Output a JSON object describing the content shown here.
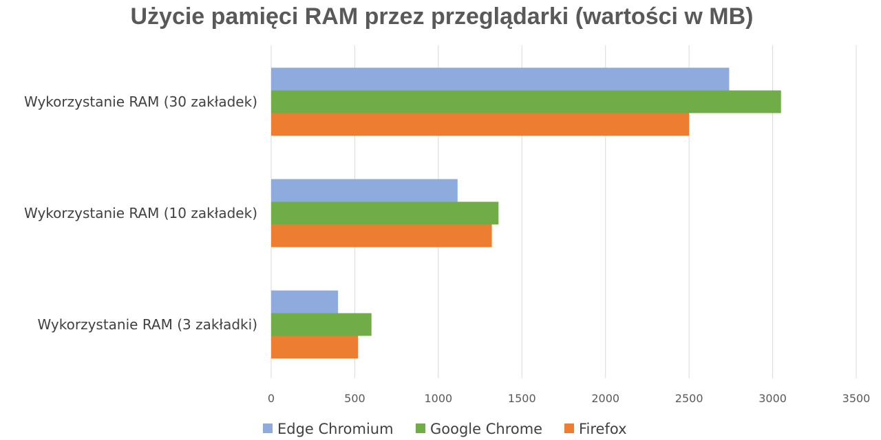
{
  "chart_data": {
    "type": "bar",
    "orientation": "horizontal",
    "title": "Użycie pamięci RAM przez przeglądarki (wartości w MB)",
    "xlabel": "",
    "ylabel": "",
    "xlim": [
      0,
      3500
    ],
    "x_ticks": [
      0,
      500,
      1000,
      1500,
      2000,
      2500,
      3000,
      3500
    ],
    "grid": true,
    "legend_position": "bottom",
    "categories": [
      "Wykorzystanie RAM (30 zakładek)",
      "Wykorzystanie RAM (10 zakładek)",
      "Wykorzystanie RAM (3 zakładki)"
    ],
    "series": [
      {
        "name": "Edge Chromium",
        "color": "#8faadc",
        "values": [
          2740,
          1115,
          400
        ]
      },
      {
        "name": "Google Chrome",
        "color": "#70ad47",
        "values": [
          3050,
          1360,
          600
        ]
      },
      {
        "name": "Firefox",
        "color": "#ed7d31",
        "values": [
          2500,
          1320,
          520
        ]
      }
    ]
  }
}
